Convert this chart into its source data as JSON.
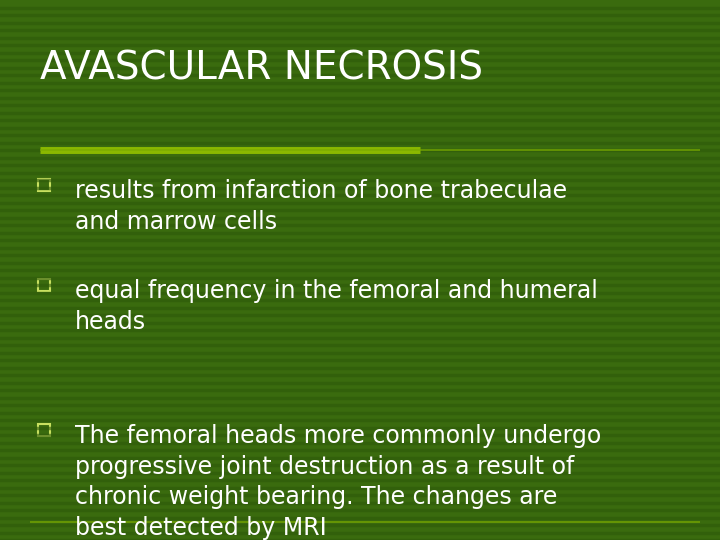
{
  "title": "AVASCULAR NECROSIS",
  "title_color": "#ffffff",
  "title_fontsize": 28,
  "background_color": "#3a6b0e",
  "stripe_dark_color": "#2e5a0a",
  "accent_line_color": "#8ab800",
  "accent_line_thin_color": "#7aaa00",
  "bullet_color": "#c8e060",
  "text_color": "#ffffff",
  "bottom_line_color": "#7aaa00",
  "bullet_points": [
    "results from infarction of bone trabeculae\nand marrow cells",
    "equal frequency in the femoral and humeral\nheads",
    "The femoral heads more commonly undergo\nprogressive joint destruction as a result of\nchronic weight bearing. The changes are\nbest detected by MRI"
  ],
  "text_fontsize": 17,
  "font_family": "DejaVu Sans"
}
